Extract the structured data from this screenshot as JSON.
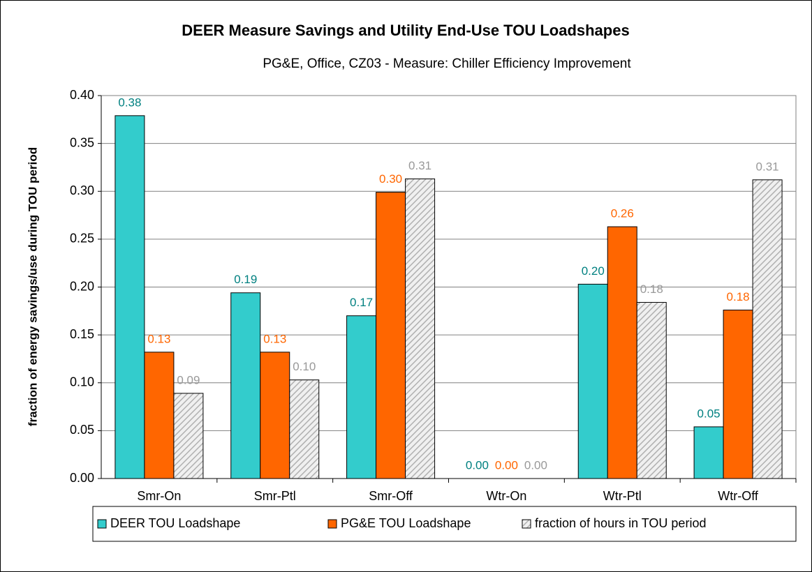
{
  "chart_data": {
    "type": "bar",
    "title": "DEER Measure Savings and Utility End-Use TOU Loadshapes",
    "subtitle": "PG&E, Office, CZ03 - Measure: Chiller Efficiency Improvement",
    "y_label": "fraction of energy savings/use during TOU period",
    "categories": [
      "Smr-On",
      "Smr-Ptl",
      "Smr-Off",
      "Wtr-On",
      "Wtr-Ptl",
      "Wtr-Off"
    ],
    "series": [
      {
        "name": "DEER TOU Loadshape",
        "color": "#33cccc",
        "label_color": "#008080",
        "values": [
          0.379,
          0.194,
          0.17,
          0,
          0.203,
          0.054
        ],
        "value_labels": [
          "0.38",
          "0.19",
          "0.17",
          "0.00",
          "0.20",
          "0.05"
        ]
      },
      {
        "name": "PG&E TOU Loadshape",
        "color": "#ff6600",
        "label_color": "#ff6600",
        "values": [
          0.132,
          0.132,
          0.299,
          0,
          0.263,
          0.176
        ],
        "value_labels": [
          "0.13",
          "0.13",
          "0.30",
          "0.00",
          "0.26",
          "0.18"
        ]
      },
      {
        "name": "fraction of hours in TOU period",
        "color": "url(#hatch)",
        "label_color": "#999999",
        "values": [
          0.089,
          0.103,
          0.313,
          0,
          0.184,
          0.312
        ],
        "value_labels": [
          "0.09",
          "0.10",
          "0.31",
          "0.00",
          "0.18",
          "0.31"
        ]
      }
    ],
    "ylim": [
      0,
      0.4
    ],
    "yticks": [
      {
        "value": 0,
        "label": "0.00"
      },
      {
        "value": 0.05,
        "label": "0.05"
      },
      {
        "value": 0.1,
        "label": "0.10"
      },
      {
        "value": 0.15,
        "label": "0.15"
      },
      {
        "value": 0.2,
        "label": "0.20"
      },
      {
        "value": 0.25,
        "label": "0.25"
      },
      {
        "value": 0.3,
        "label": "0.30"
      },
      {
        "value": 0.35,
        "label": "0.35"
      },
      {
        "value": 0.4,
        "label": "0.40"
      }
    ],
    "grid": true,
    "legend": "bottom"
  }
}
